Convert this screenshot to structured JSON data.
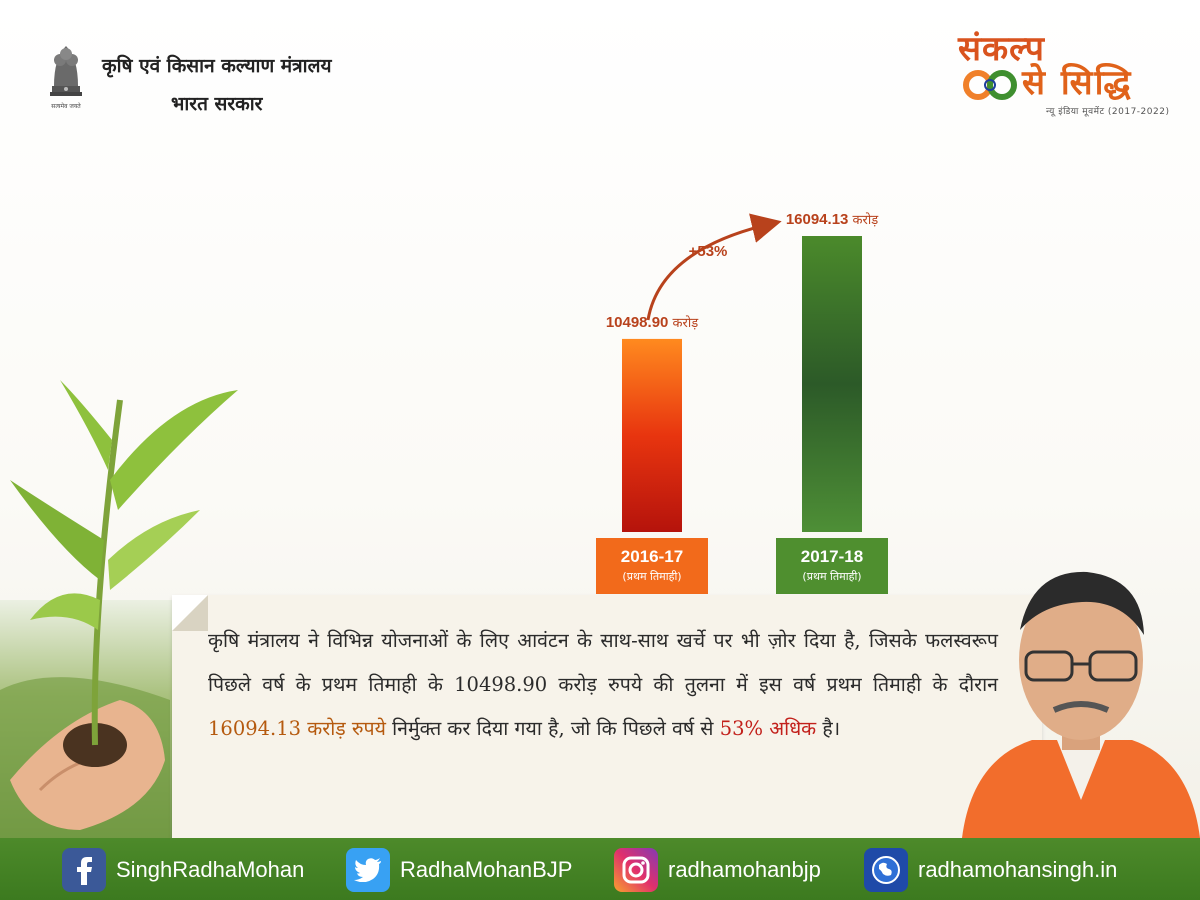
{
  "header": {
    "ministry": "कृषि एवं किसान कल्याण मंत्रालय",
    "government": "भारत सरकार",
    "emblem_motto": "सत्यमेव जयते"
  },
  "brand": {
    "line1": "संकल्प",
    "line2": "से सिद्धि",
    "tagline": "न्यू इंडिया मूवमेंट (2017-2022)"
  },
  "chart_data": {
    "type": "bar",
    "categories": [
      "2016-17",
      "2017-18"
    ],
    "category_sublabels": [
      "(प्रथम तिमाही)",
      "(प्रथम तिमाही)"
    ],
    "values": [
      10498.9,
      16094.13
    ],
    "value_labels": [
      "10498.90",
      "16094.13"
    ],
    "unit": "करोड़",
    "growth_label": "+53%",
    "colors": [
      "#e8350f",
      "#4b8a2b"
    ],
    "label_bar_colors": [
      "#f26a1b",
      "#4f8f2f"
    ],
    "ylim": [
      0,
      16094.13
    ]
  },
  "message": {
    "part1": "कृषि मंत्रालय ने विभिन्न योजनाओं के लिए आवंटन के साथ-साथ खर्चे पर भी ज़ोर दिया है, जिसके फलस्वरूप पिछले वर्ष के प्रथम तिमाही के 10498.90 करोड़ रुपये की तुलना में इस वर्ष प्रथम तिमाही के दौरान ",
    "highlight1": "16094.13 करोड़ रुपये",
    "part2": " निर्मुक्त कर दिया गया है, जो कि पिछले वर्ष से ",
    "highlight2": "53% अधिक",
    "part3": " है।"
  },
  "footer": {
    "facebook": "SinghRadhaMohan",
    "twitter": "RadhaMohanBJP",
    "instagram": "radhamohanbjp",
    "website": "radhamohansingh.in"
  }
}
